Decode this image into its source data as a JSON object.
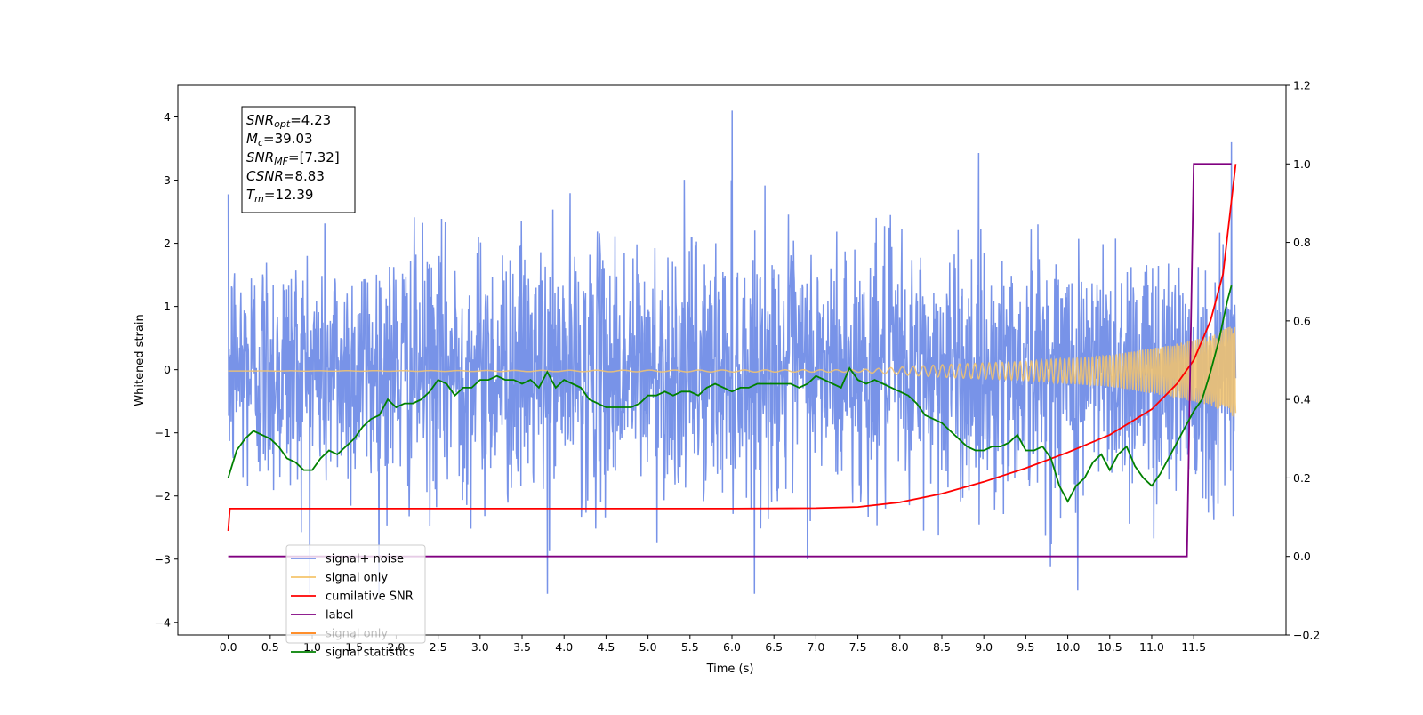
{
  "figure": {
    "info_box": {
      "lines": [
        {
          "sym": "SNR",
          "sub": "opt",
          "value": "=4.23"
        },
        {
          "sym": "M",
          "sub": "c",
          "value": "=39.03"
        },
        {
          "sym": "SNR",
          "sub": "MF",
          "value": "=[7.32]"
        },
        {
          "sym": "CSNR",
          "sub": "",
          "value": "=8.83"
        },
        {
          "sym": "T",
          "sub": "m",
          "value": "=12.39"
        }
      ]
    }
  },
  "chart_data": {
    "type": "line",
    "title": "",
    "xlabel": "Time (s)",
    "ylabel": "Whitened strain",
    "y2label": "",
    "xlim": [
      -0.6,
      12.6
    ],
    "ylim": [
      -4.2,
      4.5
    ],
    "y2lim": [
      -0.2,
      1.2
    ],
    "x_ticks": [
      0.0,
      0.5,
      1.0,
      1.5,
      2.0,
      2.5,
      3.0,
      3.5,
      4.0,
      4.5,
      5.0,
      5.5,
      6.0,
      6.5,
      7.0,
      7.5,
      8.0,
      8.5,
      9.0,
      9.5,
      10.0,
      10.5,
      11.0,
      11.5
    ],
    "x_tick_labels": [
      "0.0",
      "0.5",
      "1.0",
      "1.5",
      "2.0",
      "2.5",
      "3.0",
      "3.5",
      "4.0",
      "4.5",
      "5.0",
      "5.5",
      "6.0",
      "6.5",
      "7.0",
      "7.5",
      "8.0",
      "8.5",
      "9.0",
      "9.5",
      "10.0",
      "10.5",
      "11.0",
      "11.5"
    ],
    "y_ticks": [
      -4,
      -3,
      -2,
      -1,
      0,
      1,
      2,
      3,
      4
    ],
    "y_tick_labels": [
      "−4",
      "−3",
      "−2",
      "−1",
      "0",
      "1",
      "2",
      "3",
      "4"
    ],
    "y2_ticks": [
      -0.2,
      0.0,
      0.2,
      0.4,
      0.6,
      0.8,
      1.0,
      1.2
    ],
    "y2_tick_labels": [
      "−0.2",
      "0.0",
      "0.2",
      "0.4",
      "0.6",
      "0.8",
      "1.0",
      "1.2"
    ],
    "grid": false,
    "legend_position": "lower-left",
    "series": [
      {
        "name": "signal+ noise",
        "color": "#7893e8",
        "axis": "left",
        "kind": "noise",
        "x_range": [
          0.0,
          12.0
        ],
        "y_range": [
          -3.55,
          4.1
        ],
        "std": 1.0,
        "notable_peaks": [
          {
            "x": 6.0,
            "y": 4.1
          },
          {
            "x": 3.8,
            "y": -3.55
          },
          {
            "x": 10.12,
            "y": -3.5
          },
          {
            "x": 11.95,
            "y": 3.6
          }
        ]
      },
      {
        "name": "signal only",
        "color": "#f5c46b",
        "axis": "left",
        "kind": "chirp",
        "x_range": [
          0.0,
          12.0
        ],
        "amplitude_points": [
          [
            0.0,
            0.0
          ],
          [
            7.5,
            0.02
          ],
          [
            8.5,
            0.1
          ],
          [
            9.5,
            0.15
          ],
          [
            10.5,
            0.25
          ],
          [
            11.2,
            0.4
          ],
          [
            11.7,
            0.55
          ],
          [
            12.0,
            0.75
          ]
        ],
        "offset": -0.02
      },
      {
        "name": "cumilative SNR",
        "color": "#ff0000",
        "axis": "right",
        "x": [
          0.0,
          0.02,
          1.0,
          3.0,
          6.0,
          7.0,
          7.5,
          8.0,
          8.5,
          9.0,
          9.5,
          10.0,
          10.5,
          11.0,
          11.3,
          11.5,
          11.7,
          11.85,
          12.0
        ],
        "y": [
          0.065,
          0.122,
          0.122,
          0.122,
          0.122,
          0.123,
          0.126,
          0.138,
          0.16,
          0.19,
          0.225,
          0.265,
          0.31,
          0.375,
          0.44,
          0.5,
          0.6,
          0.72,
          1.0
        ]
      },
      {
        "name": "label",
        "color": "#800080",
        "axis": "right",
        "x": [
          0.0,
          11.42,
          11.5,
          11.95
        ],
        "y": [
          0.0,
          0.0,
          1.0,
          1.0
        ]
      },
      {
        "name": "signal only",
        "color": "#ff7f0e",
        "axis": "right",
        "hidden": true,
        "x": [
          0.0,
          12.0
        ],
        "y": [
          0.0,
          0.0
        ]
      },
      {
        "name": "signal statistics",
        "color": "#008000",
        "axis": "right",
        "x": [
          0.0,
          0.1,
          0.2,
          0.3,
          0.4,
          0.5,
          0.6,
          0.7,
          0.8,
          0.9,
          1.0,
          1.1,
          1.2,
          1.3,
          1.4,
          1.5,
          1.6,
          1.7,
          1.8,
          1.9,
          2.0,
          2.1,
          2.2,
          2.3,
          2.4,
          2.5,
          2.6,
          2.7,
          2.8,
          2.9,
          3.0,
          3.1,
          3.2,
          3.3,
          3.4,
          3.5,
          3.6,
          3.7,
          3.8,
          3.9,
          4.0,
          4.1,
          4.2,
          4.3,
          4.4,
          4.5,
          4.6,
          4.7,
          4.8,
          4.9,
          5.0,
          5.1,
          5.2,
          5.3,
          5.4,
          5.5,
          5.6,
          5.7,
          5.8,
          5.9,
          6.0,
          6.1,
          6.2,
          6.3,
          6.4,
          6.5,
          6.6,
          6.7,
          6.8,
          6.9,
          7.0,
          7.1,
          7.2,
          7.3,
          7.4,
          7.5,
          7.6,
          7.7,
          7.8,
          7.9,
          8.0,
          8.1,
          8.2,
          8.3,
          8.4,
          8.5,
          8.6,
          8.7,
          8.8,
          8.9,
          9.0,
          9.1,
          9.2,
          9.3,
          9.4,
          9.5,
          9.6,
          9.7,
          9.8,
          9.9,
          10.0,
          10.1,
          10.2,
          10.3,
          10.4,
          10.5,
          10.6,
          10.7,
          10.8,
          10.9,
          11.0,
          11.1,
          11.2,
          11.3,
          11.4,
          11.5,
          11.6,
          11.7,
          11.8,
          11.9,
          11.95
        ],
        "y": [
          0.2,
          0.27,
          0.3,
          0.32,
          0.31,
          0.3,
          0.28,
          0.25,
          0.24,
          0.22,
          0.22,
          0.25,
          0.27,
          0.26,
          0.28,
          0.3,
          0.33,
          0.35,
          0.36,
          0.4,
          0.38,
          0.39,
          0.39,
          0.4,
          0.42,
          0.45,
          0.44,
          0.41,
          0.43,
          0.43,
          0.45,
          0.45,
          0.46,
          0.45,
          0.45,
          0.44,
          0.45,
          0.43,
          0.47,
          0.43,
          0.45,
          0.44,
          0.43,
          0.4,
          0.39,
          0.38,
          0.38,
          0.38,
          0.38,
          0.39,
          0.41,
          0.41,
          0.42,
          0.41,
          0.42,
          0.42,
          0.41,
          0.43,
          0.44,
          0.43,
          0.42,
          0.43,
          0.43,
          0.44,
          0.44,
          0.44,
          0.44,
          0.44,
          0.43,
          0.44,
          0.46,
          0.45,
          0.44,
          0.43,
          0.48,
          0.45,
          0.44,
          0.45,
          0.44,
          0.43,
          0.42,
          0.41,
          0.39,
          0.36,
          0.35,
          0.34,
          0.32,
          0.3,
          0.28,
          0.27,
          0.27,
          0.28,
          0.28,
          0.29,
          0.31,
          0.27,
          0.27,
          0.28,
          0.25,
          0.18,
          0.14,
          0.18,
          0.2,
          0.24,
          0.26,
          0.22,
          0.26,
          0.28,
          0.23,
          0.2,
          0.18,
          0.21,
          0.25,
          0.29,
          0.33,
          0.37,
          0.4,
          0.47,
          0.55,
          0.65,
          0.69
        ]
      }
    ]
  }
}
